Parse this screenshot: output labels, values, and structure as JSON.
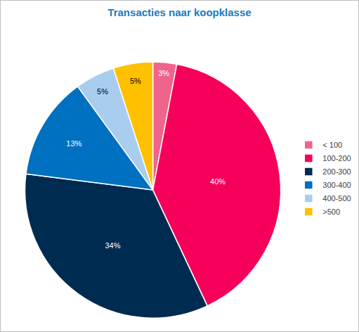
{
  "chart_data": {
    "type": "pie",
    "title": "Transacties naar koopklasse",
    "categories": [
      "< 100",
      "100-200",
      "200-300",
      "300-400",
      "400-500",
      ">500"
    ],
    "values": [
      3,
      40,
      34,
      13,
      5,
      5
    ],
    "value_labels": [
      "3%",
      "40%",
      "34%",
      "13%",
      "5%",
      "5%"
    ],
    "colors": [
      "#f0648c",
      "#f5005a",
      "#002b51",
      "#0070c0",
      "#a9cdef",
      "#ffc000"
    ],
    "data_labels": true,
    "legend": "right"
  }
}
